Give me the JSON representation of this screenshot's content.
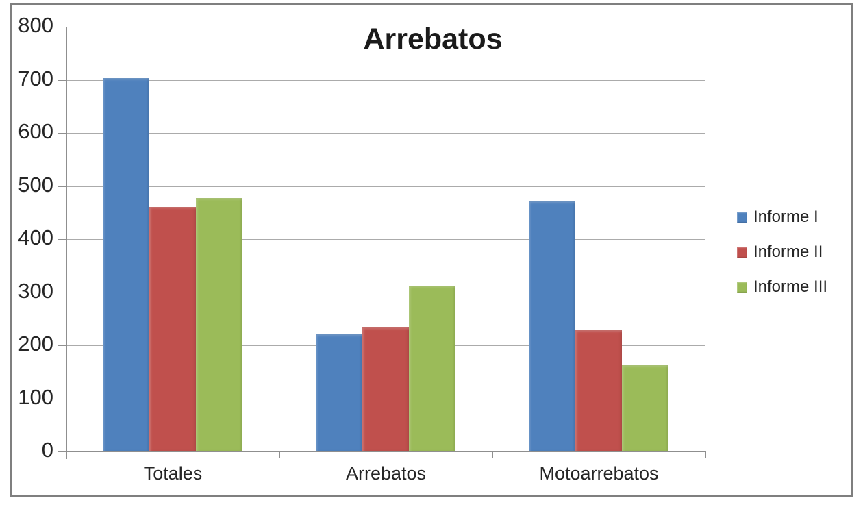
{
  "chart_data": {
    "type": "bar",
    "title": "Arrebatos",
    "categories": [
      "Totales",
      "Arrebatos",
      "Motoarrebatos"
    ],
    "series": [
      {
        "name": "Informe I",
        "color": "#4F81BD",
        "values": [
          703,
          220,
          471
        ]
      },
      {
        "name": "Informe II",
        "color": "#C0504D",
        "values": [
          461,
          234,
          228
        ]
      },
      {
        "name": "Informe III",
        "color": "#9BBB59",
        "values": [
          477,
          312,
          162
        ]
      }
    ],
    "xlabel": "",
    "ylabel": "",
    "ylim": [
      0,
      800
    ],
    "yticks": [
      0,
      100,
      200,
      300,
      400,
      500,
      600,
      700,
      800
    ],
    "grid": true,
    "legend_position": "right"
  },
  "colors": {
    "gridline": "#ababab",
    "axis": "#8f8f8f",
    "frame_border": "#7f7f7f",
    "title_text": "#1b1b1b",
    "label_text": "#262626",
    "background": "#ffffff"
  }
}
